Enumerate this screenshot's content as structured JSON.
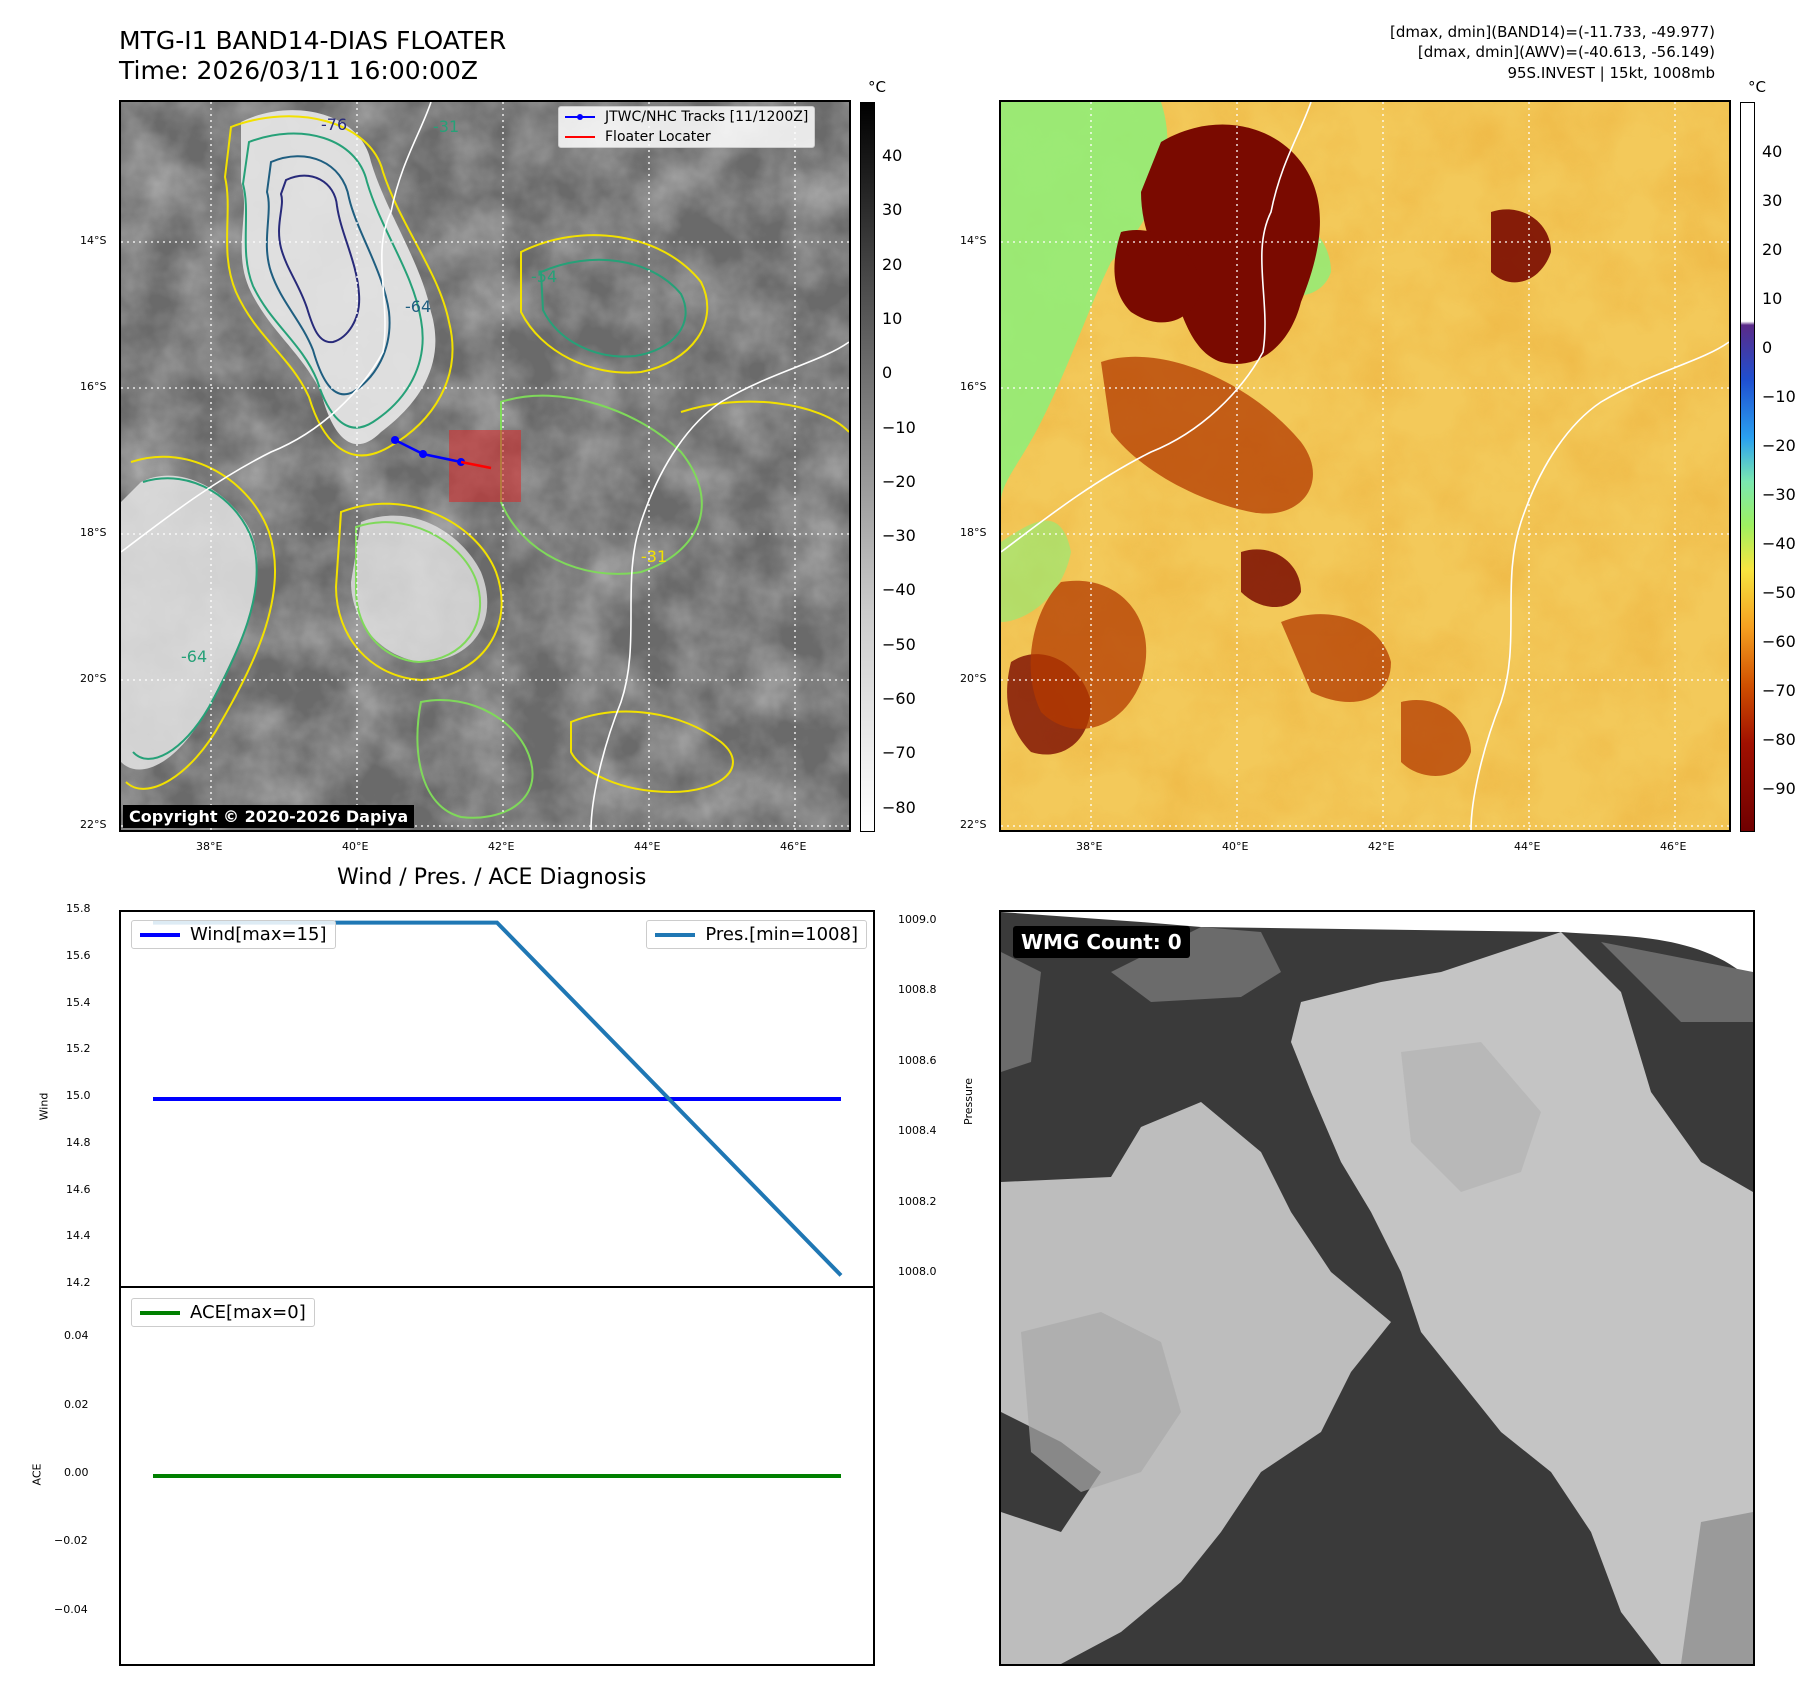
{
  "header": {
    "title_line1": "MTG-I1 BAND14-DIAS FLOATER",
    "title_line2": "Time: 2026/03/11 16:00:00Z",
    "info_line1": "[dmax, dmin](BAND14)=(-11.733, -49.977)",
    "info_line2": "[dmax, dmin](AWV)=(-40.613, -56.149)",
    "info_line3": "95S.INVEST | 15kt, 1008mb"
  },
  "map": {
    "lat_labels": [
      "14°S",
      "16°S",
      "18°S",
      "20°S",
      "22°S"
    ],
    "lon_labels": [
      "38°E",
      "40°E",
      "42°E",
      "44°E",
      "46°E"
    ],
    "contour_labels": [
      "-31",
      "-54",
      "-64",
      "-76"
    ],
    "copyright": "Copyright © 2020-2026 Dapiya",
    "legend": [
      {
        "label": "JTWC/NHC Tracks [11/1200Z]",
        "color": "#0000ff"
      },
      {
        "label": "Floater Locater",
        "color": "#ff0000"
      }
    ],
    "unit": "°C",
    "colorbar_gray_ticks": [
      "40",
      "30",
      "20",
      "10",
      "0",
      "−10",
      "−20",
      "−30",
      "−40",
      "−50",
      "−60",
      "−70",
      "−80"
    ],
    "colorbar_color_ticks": [
      "40",
      "30",
      "20",
      "10",
      "0",
      "−10",
      "−20",
      "−30",
      "−40",
      "−50",
      "−60",
      "−70",
      "−80",
      "−90"
    ]
  },
  "diagnosis": {
    "title": "Wind / Pres. / ACE Diagnosis",
    "wind_ylabel": "Wind",
    "pressure_ylabel": "Pressure",
    "ace_ylabel": "ACE",
    "wind_legend": "Wind[max=15]",
    "pressure_legend": "Pres.[min=1008]",
    "ace_legend": "ACE[max=0]",
    "wmg_label": "WMG Count: 0"
  },
  "chart_data": [
    {
      "type": "line",
      "title": "Wind / Pres. / ACE Diagnosis",
      "ylabel": "Wind",
      "ylim": [
        14.2,
        15.8
      ],
      "yticks": [
        14.2,
        14.4,
        14.6,
        14.8,
        15.0,
        15.2,
        15.4,
        15.6,
        15.8
      ],
      "x": [
        0,
        1,
        2
      ],
      "series": [
        {
          "name": "Wind[max=15]",
          "values": [
            15,
            15,
            15
          ],
          "color": "#0000ff"
        }
      ]
    },
    {
      "type": "line",
      "ylabel": "Pressure",
      "ylim": [
        1007.97,
        1009.03
      ],
      "yticks": [
        1008.0,
        1008.2,
        1008.4,
        1008.6,
        1008.8,
        1009.0
      ],
      "x": [
        0,
        1,
        2
      ],
      "series": [
        {
          "name": "Pres.[min=1008]",
          "values": [
            1009,
            1009,
            1008
          ],
          "color": "#1f77b4"
        }
      ]
    },
    {
      "type": "line",
      "ylabel": "ACE",
      "ylim": [
        -0.055,
        0.055
      ],
      "yticks": [
        -0.04,
        -0.02,
        0.0,
        0.02,
        0.04
      ],
      "x": [
        0,
        1,
        2
      ],
      "series": [
        {
          "name": "ACE[max=0]",
          "values": [
            0,
            0,
            0
          ],
          "color": "#008000"
        }
      ]
    }
  ]
}
